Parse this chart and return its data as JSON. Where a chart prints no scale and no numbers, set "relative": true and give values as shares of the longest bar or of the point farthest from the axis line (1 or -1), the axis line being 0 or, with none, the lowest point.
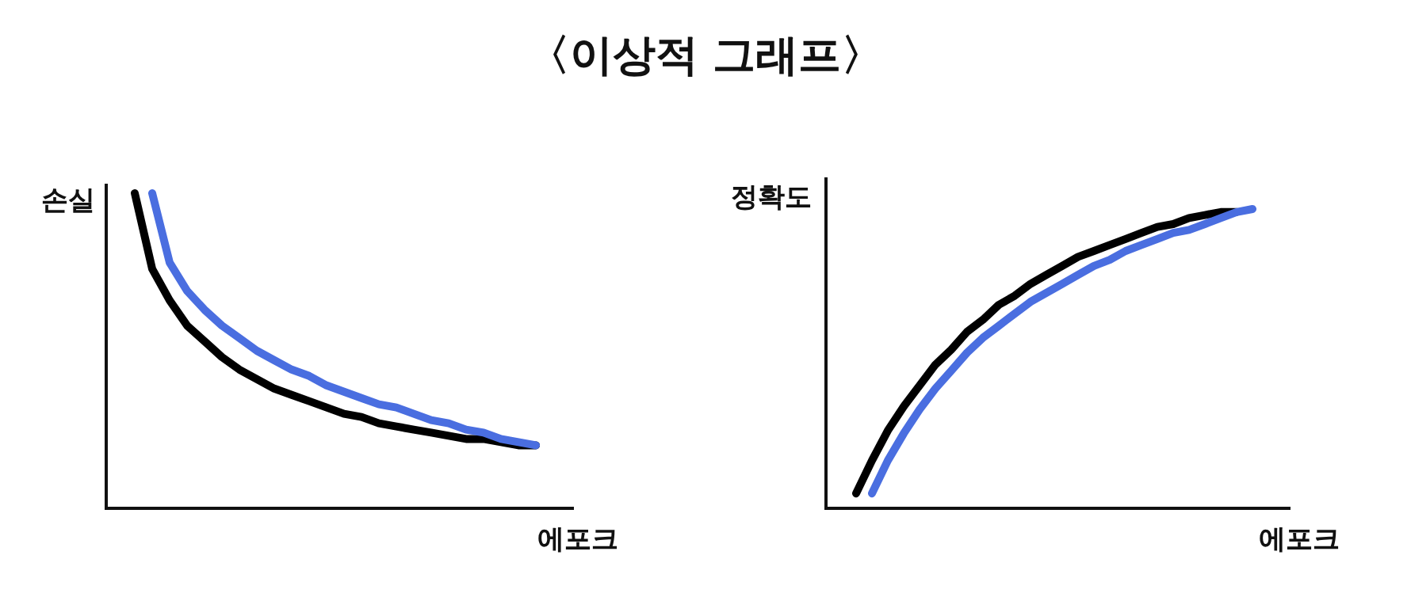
{
  "chart_data": [
    {
      "type": "line",
      "title": "〈이상적 그래프〉",
      "ylabel": "손실",
      "xlabel": "에포크",
      "relative": true,
      "categories": [
        null,
        null,
        null,
        null,
        null,
        null,
        null,
        null,
        null,
        null,
        null,
        null,
        null,
        null,
        null,
        null,
        null,
        null,
        null,
        null,
        null,
        null,
        null,
        null
      ],
      "series": [
        {
          "color": "#000000",
          "values": [
            1.0,
            0.76,
            0.66,
            0.58,
            0.53,
            0.48,
            0.44,
            0.41,
            0.38,
            0.36,
            0.34,
            0.32,
            0.3,
            0.29,
            0.27,
            0.26,
            0.25,
            0.24,
            0.23,
            0.22,
            0.22,
            0.21,
            0.2,
            0.2
          ]
        },
        {
          "color": "#4a6ee0",
          "values": [
            null,
            1.0,
            0.78,
            0.69,
            0.63,
            0.58,
            0.54,
            0.5,
            0.47,
            0.44,
            0.42,
            0.39,
            0.37,
            0.35,
            0.33,
            0.32,
            0.3,
            0.28,
            0.27,
            0.25,
            0.24,
            0.22,
            0.21,
            0.2
          ]
        }
      ]
    },
    {
      "type": "line",
      "ylabel": "정확도",
      "xlabel": "에포크",
      "relative": true,
      "categories": [
        null,
        null,
        null,
        null,
        null,
        null,
        null,
        null,
        null,
        null,
        null,
        null,
        null,
        null,
        null,
        null,
        null,
        null,
        null,
        null,
        null,
        null,
        null,
        null,
        null,
        null
      ],
      "series": [
        {
          "color": "#000000",
          "values": [
            0.05,
            0.16,
            0.26,
            0.34,
            0.41,
            0.48,
            0.53,
            0.59,
            0.63,
            0.68,
            0.71,
            0.75,
            0.78,
            0.81,
            0.84,
            0.86,
            0.88,
            0.9,
            0.92,
            0.94,
            0.95,
            0.97,
            0.98,
            0.99,
            0.99,
            null
          ]
        },
        {
          "color": "#4a6ee0",
          "values": [
            null,
            0.05,
            0.16,
            0.25,
            0.33,
            0.4,
            0.46,
            0.52,
            0.57,
            0.61,
            0.65,
            0.69,
            0.72,
            0.75,
            0.78,
            0.81,
            0.83,
            0.86,
            0.88,
            0.9,
            0.92,
            0.93,
            0.95,
            0.97,
            0.99,
            1.0
          ]
        }
      ]
    }
  ]
}
